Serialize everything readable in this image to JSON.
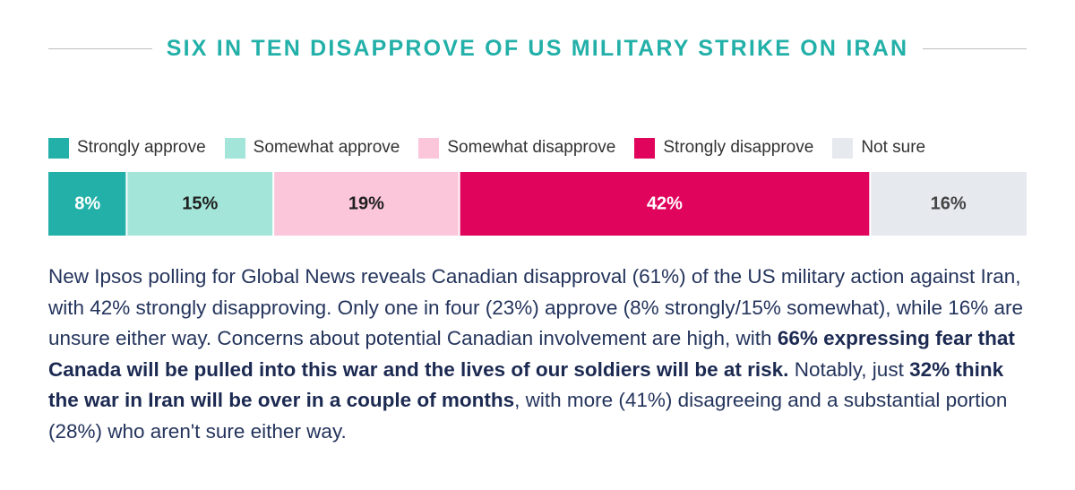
{
  "title": "SIX IN TEN DISAPPROVE OF US MILITARY STRIKE ON IRAN",
  "colors": {
    "title": "#22b0a8",
    "text": "#24345c",
    "rule": "#bdbdbd"
  },
  "chart_data": {
    "type": "bar",
    "orientation": "horizontal-stacked",
    "title": "SIX IN TEN DISAPPROVE OF US MILITARY STRIKE ON IRAN",
    "legend_position": "top",
    "grid": false,
    "series": [
      {
        "name": "Strongly approve",
        "value": 8,
        "label": "8%",
        "color": "#22b0a8",
        "label_color": "#ffffff"
      },
      {
        "name": "Somewhat approve",
        "value": 15,
        "label": "15%",
        "color": "#a3e6d9",
        "label_color": "#1f1f1f"
      },
      {
        "name": "Somewhat disapprove",
        "value": 19,
        "label": "19%",
        "color": "#fbc6da",
        "label_color": "#1f1f1f"
      },
      {
        "name": "Strongly disapprove",
        "value": 42,
        "label": "42%",
        "color": "#e0045c",
        "label_color": "#ffffff"
      },
      {
        "name": "Not sure",
        "value": 16,
        "label": "16%",
        "color": "#e6e9ee",
        "label_color": "#444444"
      }
    ]
  },
  "paragraph": {
    "t1": "New Ipsos polling for Global News reveals Canadian disapproval (61%) of the US military action against Iran, with 42% strongly disapproving. Only one in four (23%) approve (8% strongly/15% somewhat), while 16% are unsure either way. Concerns about potential Canadian involvement are high, with ",
    "b1": "66% expressing fear that Canada will be pulled into this war and the lives of our soldiers will be at risk.",
    "t2": " Notably, just ",
    "b2": "32% think the war in Iran will be over in a couple of months",
    "t3": ", with more (41%) disagreeing and a substantial portion (28%) who aren't sure either way."
  }
}
